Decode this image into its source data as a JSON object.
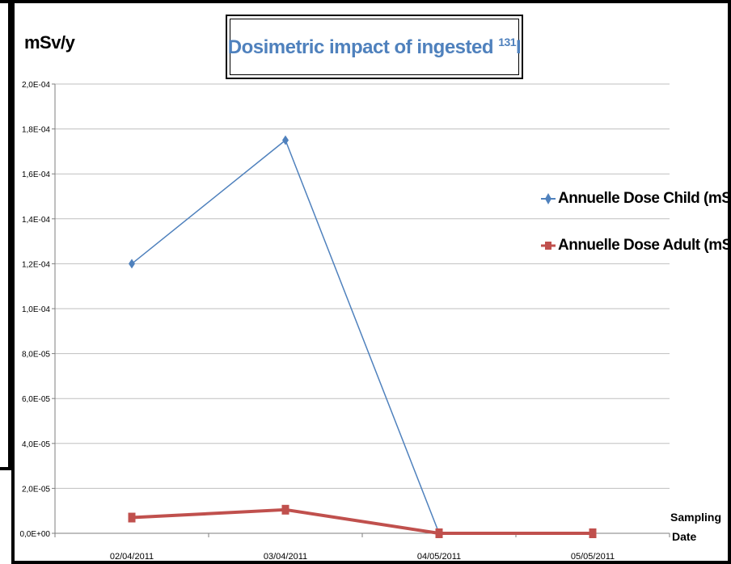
{
  "title": {
    "main": "Dosimetric impact of ingested ",
    "superscript": "131",
    "element": "I"
  },
  "ylabel": "mSv/y",
  "xlabel_line1": "Sampling",
  "xlabel_line2": "Date",
  "colors": {
    "child": "#4f81bd",
    "adult": "#c0504d",
    "grid": "#bfbfbf",
    "axis": "#7f7f7f",
    "title": "#4f81bd"
  },
  "chart_data": {
    "type": "line",
    "title": "Dosimetric impact of ingested 131I",
    "xlabel": "Sampling Date",
    "ylabel": "mSv/y",
    "categories": [
      "02/04/2011",
      "03/04/2011",
      "04/05/2011",
      "05/05/2011"
    ],
    "ylim": [
      0,
      0.0002
    ],
    "yticks": [
      0,
      2e-05,
      4e-05,
      6e-05,
      8e-05,
      0.0001,
      0.00012,
      0.00014,
      0.00016,
      0.00018,
      0.0002
    ],
    "ytick_labels": [
      "0,0E+00",
      "2,0E-05",
      "4,0E-05",
      "6,0E-05",
      "8,0E-05",
      "1,0E-04",
      "1,2E-04",
      "1,4E-04",
      "1,6E-04",
      "1,8E-04",
      "2,0E-04"
    ],
    "grid": "horizontal",
    "legend_position": "right",
    "series": [
      {
        "name": "Annuelle Dose  Child (mSv)",
        "values": [
          0.00012,
          0.000175,
          0,
          null
        ],
        "marker": "diamond",
        "color": "#4f81bd"
      },
      {
        "name": "Annuelle Dose  Adult (mSv)",
        "values": [
          7e-06,
          1.05e-05,
          0,
          0
        ],
        "marker": "square",
        "color": "#c0504d"
      }
    ]
  }
}
